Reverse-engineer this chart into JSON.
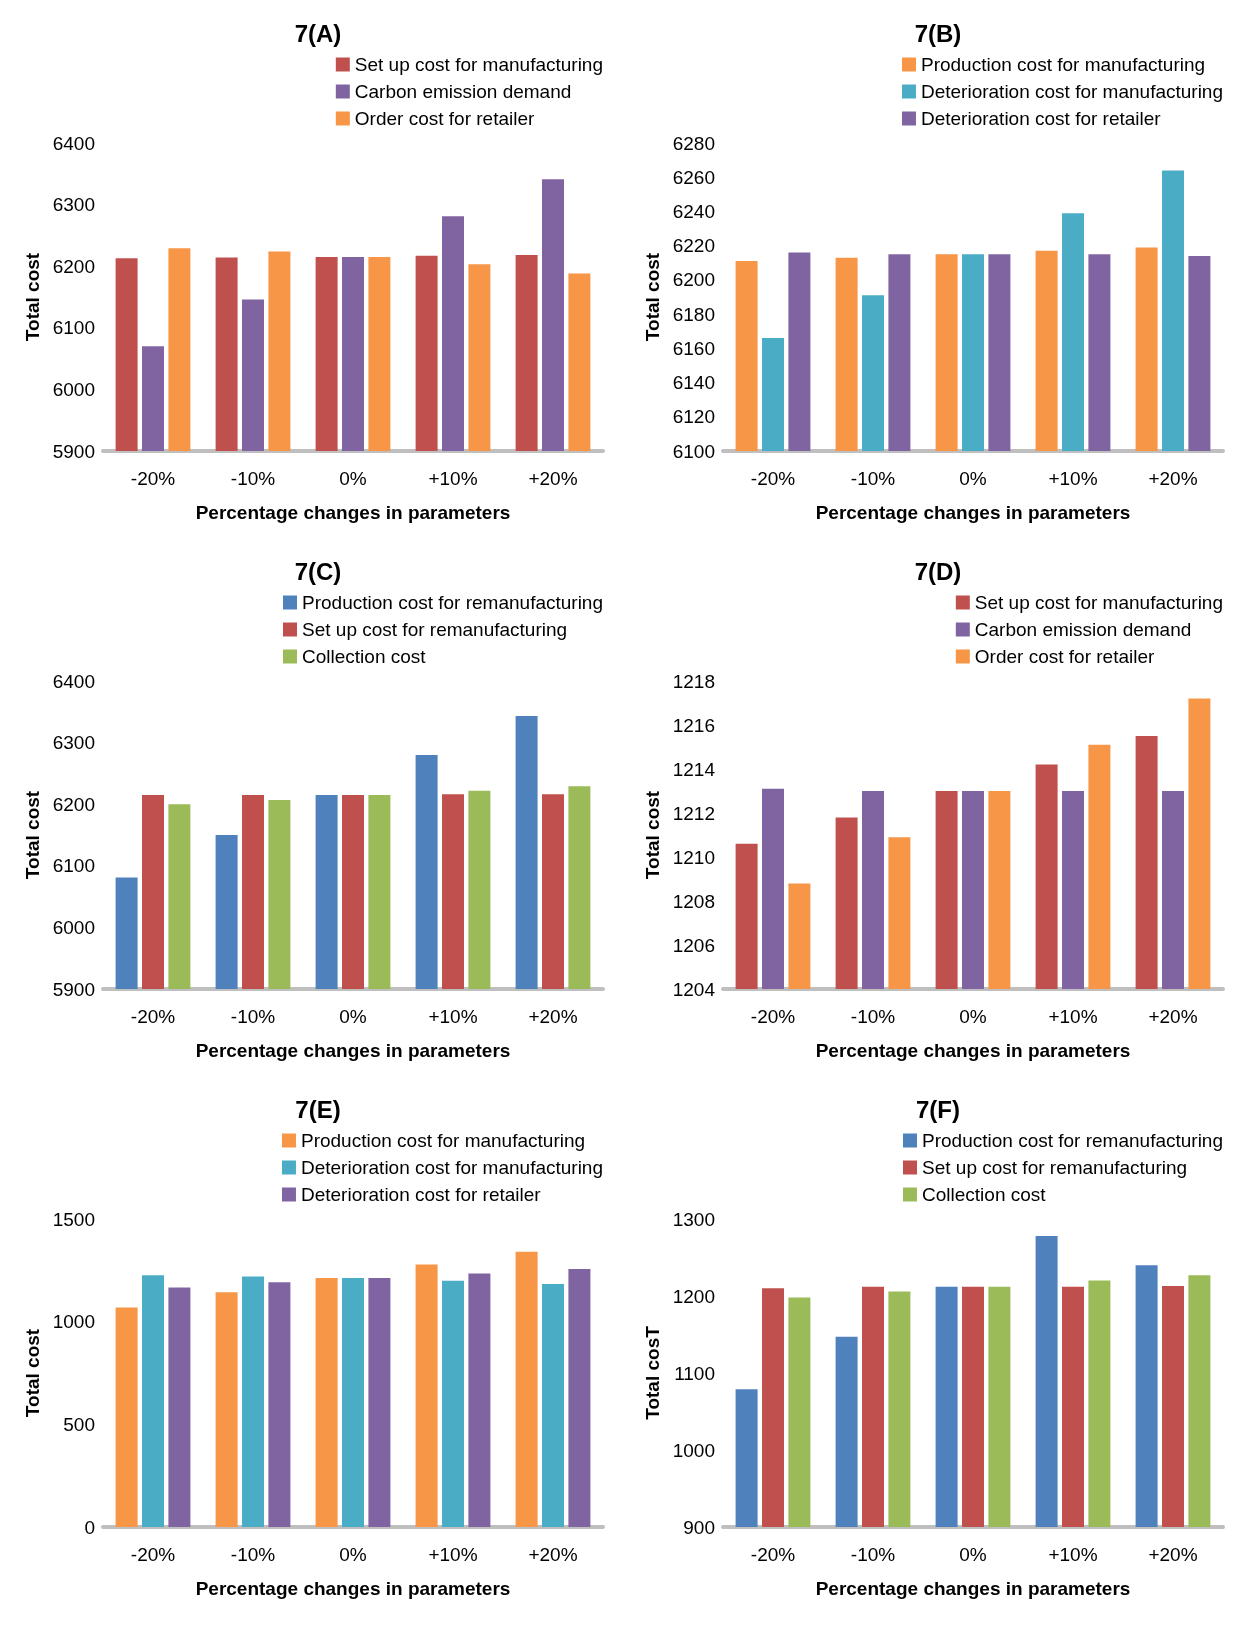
{
  "chart_data": [
    {
      "type": "bar",
      "title": "7(A)",
      "xlabel": "Percentage changes in parameters",
      "ylabel": "Total cost",
      "categories": [
        "-20%",
        "-10%",
        "0%",
        "+10%",
        "+20%"
      ],
      "ylim": [
        5900,
        6400
      ],
      "yticks": [
        5900,
        6000,
        6100,
        6200,
        6300,
        6400
      ],
      "legend": "top right",
      "series": [
        {
          "name": "Set up cost for manufacturing",
          "color": "#c0504d",
          "values": [
            6213,
            6214,
            6215,
            6217,
            6218
          ]
        },
        {
          "name": "Carbon emission demand",
          "color": "#8064a2",
          "values": [
            6070,
            6146,
            6215,
            6281,
            6341
          ]
        },
        {
          "name": "Order cost for retailer",
          "color": "#f79646",
          "values": [
            6229,
            6224,
            6215,
            6203,
            6188
          ]
        }
      ]
    },
    {
      "type": "bar",
      "title": "7(B)",
      "xlabel": "Percentage changes in parameters",
      "ylabel": "Total cost",
      "categories": [
        "-20%",
        "-10%",
        "0%",
        "+10%",
        "+20%"
      ],
      "ylim": [
        6100,
        6280
      ],
      "yticks": [
        6100,
        6120,
        6140,
        6160,
        6180,
        6200,
        6220,
        6240,
        6260,
        6280
      ],
      "legend": "top right",
      "series": [
        {
          "name": "Production cost for manufacturing",
          "color": "#f79646",
          "values": [
            6211,
            6213,
            6215,
            6217,
            6219
          ]
        },
        {
          "name": "Deterioration cost for manufacturing",
          "color": "#4bacc6",
          "values": [
            6166,
            6191,
            6215,
            6239,
            6264
          ]
        },
        {
          "name": "Deterioration cost for retailer",
          "color": "#8064a2",
          "values": [
            6216,
            6215,
            6215,
            6215,
            6214
          ]
        }
      ]
    },
    {
      "type": "bar",
      "title": "7(C)",
      "xlabel": "Percentage changes in parameters",
      "ylabel": "Total cost",
      "categories": [
        "-20%",
        "-10%",
        "0%",
        "+10%",
        "+20%"
      ],
      "ylim": [
        5900,
        6400
      ],
      "yticks": [
        5900,
        6000,
        6100,
        6200,
        6300,
        6400
      ],
      "legend": "top right",
      "series": [
        {
          "name": "Production cost for remanufacturing",
          "color": "#4f81bd",
          "values": [
            6081,
            6150,
            6215,
            6280,
            6343
          ]
        },
        {
          "name": "Set up cost for remanufacturing",
          "color": "#c0504d",
          "values": [
            6215,
            6215,
            6215,
            6216,
            6216
          ]
        },
        {
          "name": "Collection cost",
          "color": "#9bbb59",
          "values": [
            6200,
            6207,
            6215,
            6222,
            6229
          ]
        }
      ]
    },
    {
      "type": "bar",
      "title": "7(D)",
      "xlabel": "Percentage changes in parameters",
      "ylabel": "Total cost",
      "categories": [
        "-20%",
        "-10%",
        "0%",
        "+10%",
        "+20%"
      ],
      "ylim": [
        1204,
        1218
      ],
      "yticks": [
        1204,
        1206,
        1208,
        1210,
        1212,
        1214,
        1216,
        1218
      ],
      "legend": "top right",
      "series": [
        {
          "name": "Set up cost for manufacturing",
          "color": "#c0504d",
          "values": [
            1210.6,
            1211.8,
            1213.0,
            1214.2,
            1215.5
          ]
        },
        {
          "name": "Carbon emission demand",
          "color": "#8064a2",
          "values": [
            1213.1,
            1213.0,
            1213.0,
            1213.0,
            1213.0
          ]
        },
        {
          "name": "Order cost for retailer",
          "color": "#f79646",
          "values": [
            1208.8,
            1210.9,
            1213.0,
            1215.1,
            1217.2
          ]
        }
      ]
    },
    {
      "type": "bar",
      "title": "7(E)",
      "xlabel": "Percentage changes in parameters",
      "ylabel": "Total cost",
      "categories": [
        "-20%",
        "-10%",
        "0%",
        "+10%",
        "+20%"
      ],
      "ylim": [
        0,
        1500
      ],
      "yticks": [
        0,
        500,
        1000,
        1500
      ],
      "legend": "top right",
      "series": [
        {
          "name": "Production cost for manufacturing",
          "color": "#f79646",
          "values": [
            1069,
            1143,
            1213,
            1278,
            1341
          ]
        },
        {
          "name": "Deterioration cost for manufacturing",
          "color": "#4bacc6",
          "values": [
            1226,
            1220,
            1213,
            1199,
            1183
          ]
        },
        {
          "name": "Deterioration cost for retailer",
          "color": "#8064a2",
          "values": [
            1166,
            1192,
            1213,
            1235,
            1257
          ]
        }
      ]
    },
    {
      "type": "bar",
      "title": "7(F)",
      "xlabel": "Percentage changes in parameters",
      "ylabel": "Total cosT",
      "categories": [
        "-20%",
        "-10%",
        "0%",
        "+10%",
        "+20%"
      ],
      "ylim": [
        900,
        1300
      ],
      "yticks": [
        900,
        1000,
        1100,
        1200,
        1300
      ],
      "legend": "top right",
      "series": [
        {
          "name": "Production cost for remanufacturing",
          "color": "#4f81bd",
          "values": [
            1079,
            1147,
            1212,
            1278,
            1240
          ]
        },
        {
          "name": "Set up cost for remanufacturing",
          "color": "#c0504d",
          "values": [
            1210,
            1212,
            1212,
            1212,
            1213
          ]
        },
        {
          "name": "Collection cost",
          "color": "#9bbb59",
          "values": [
            1198,
            1206,
            1212,
            1220,
            1227
          ]
        }
      ]
    }
  ]
}
